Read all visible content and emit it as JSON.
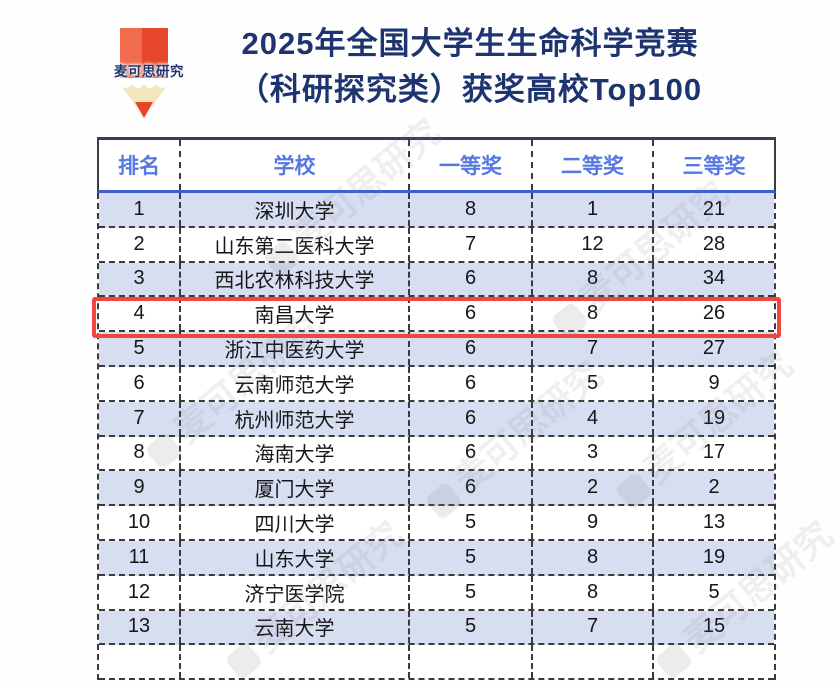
{
  "logo": {
    "text": "麦可思研究"
  },
  "title": {
    "line1": "2025年全国大学生生命科学竞赛",
    "line2": "（科研探究类）获奖高校Top100"
  },
  "watermark": {
    "text": "麦可思研究"
  },
  "colors": {
    "title_navy": "#1d3470",
    "header_blue": "#5678e3",
    "row_alt_blue": "#d7def2",
    "highlight_red": "#f0463e",
    "pencil_red_light": "#f06c4d",
    "pencil_red_dark": "#e6472b",
    "pencil_cream": "#f4e6bd"
  },
  "chart_data": {
    "type": "table",
    "title": "2025年全国大学生生命科学竞赛（科研探究类）获奖高校Top100",
    "columns": [
      "排名",
      "学校",
      "一等奖",
      "二等奖",
      "三等奖"
    ],
    "rows": [
      [
        "1",
        "深圳大学",
        "8",
        "1",
        "21"
      ],
      [
        "2",
        "山东第二医科大学",
        "7",
        "12",
        "28"
      ],
      [
        "3",
        "西北农林科技大学",
        "6",
        "8",
        "34"
      ],
      [
        "4",
        "南昌大学",
        "6",
        "8",
        "26"
      ],
      [
        "5",
        "浙江中医药大学",
        "6",
        "7",
        "27"
      ],
      [
        "6",
        "云南师范大学",
        "6",
        "5",
        "9"
      ],
      [
        "7",
        "杭州师范大学",
        "6",
        "4",
        "19"
      ],
      [
        "8",
        "海南大学",
        "6",
        "3",
        "17"
      ],
      [
        "9",
        "厦门大学",
        "6",
        "2",
        "2"
      ],
      [
        "10",
        "四川大学",
        "5",
        "9",
        "13"
      ],
      [
        "11",
        "山东大学",
        "5",
        "8",
        "19"
      ],
      [
        "12",
        "济宁医学院",
        "5",
        "8",
        "5"
      ],
      [
        "13",
        "云南大学",
        "5",
        "7",
        "15"
      ]
    ],
    "highlighted_row_rank": "4"
  }
}
